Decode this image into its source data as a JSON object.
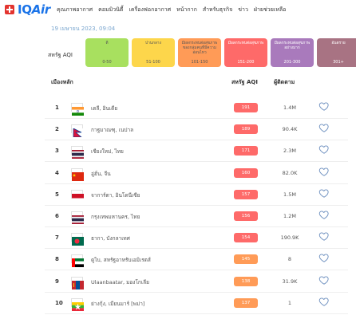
{
  "header": {
    "logo_prefix": "IQ",
    "logo_suffix": "Air",
    "nav": [
      "คุณภาพอากาศ",
      "คอมมิวนิตี้",
      "เครื่องฟอกอากาศ",
      "หน้ากาก",
      "สำหรับธุรกิจ",
      "ข่าว",
      "ฝ่ายช่วยเหลือ"
    ]
  },
  "date": "19 เมษายน 2023, 09:04",
  "scale": {
    "label": "สหรัฐ AQI",
    "levels": [
      {
        "name": "ดี",
        "range": "0-50",
        "color": "#a8e05f",
        "text_color": "#555555"
      },
      {
        "name": "ปานกลาง",
        "range": "51-100",
        "color": "#fdd64b",
        "text_color": "#555555"
      },
      {
        "name": "มีผลกระทบต่อสุขภาพของกลุ่มคนที่มีความอ่อนไหว",
        "range": "101-150",
        "color": "#ff9b57",
        "text_color": "#555555"
      },
      {
        "name": "มีผลกระทบต่อสุขภาพ",
        "range": "151-200",
        "color": "#fe6a69",
        "text_color": "#ffffff"
      },
      {
        "name": "มีผลกระทบต่อสุขภาพอย่างมาก",
        "range": "201-300",
        "color": "#a97abc",
        "text_color": "#ffffff"
      },
      {
        "name": "อันตราย",
        "range": "301+",
        "color": "#a87383",
        "text_color": "#ffffff"
      }
    ]
  },
  "table": {
    "headers": {
      "city": "เมืองหลัก",
      "aqi": "สหรัฐ AQI",
      "followers": "ผู้ติดตาม"
    },
    "rows": [
      {
        "rank": "1",
        "city": "เดลี, อินเดีย",
        "aqi": "191",
        "aqi_color": "#fe6a69",
        "followers": "1.4M",
        "flag": "india"
      },
      {
        "rank": "2",
        "city": "กาฐมาณฑุ, เนปาล",
        "aqi": "189",
        "aqi_color": "#fe6a69",
        "followers": "90.4K",
        "flag": "nepal"
      },
      {
        "rank": "3",
        "city": "เชียงใหม่, ไทย",
        "aqi": "171",
        "aqi_color": "#fe6a69",
        "followers": "2.3M",
        "flag": "thailand"
      },
      {
        "rank": "4",
        "city": "อู่ฮั่น, จีน",
        "aqi": "160",
        "aqi_color": "#fe6a69",
        "followers": "82.0K",
        "flag": "china"
      },
      {
        "rank": "5",
        "city": "จาการ์ตา, อินโดนีเซีย",
        "aqi": "157",
        "aqi_color": "#fe6a69",
        "followers": "1.5M",
        "flag": "indonesia"
      },
      {
        "rank": "6",
        "city": "กรุงเทพมหานคร, ไทย",
        "aqi": "156",
        "aqi_color": "#fe6a69",
        "followers": "1.2M",
        "flag": "thailand"
      },
      {
        "rank": "7",
        "city": "ธากา, บังกลาเทศ",
        "aqi": "154",
        "aqi_color": "#fe6a69",
        "followers": "190.9K",
        "flag": "bangladesh"
      },
      {
        "rank": "8",
        "city": "ดูไบ, สหรัฐอาหรับเอมิเรตส์",
        "aqi": "145",
        "aqi_color": "#ff9b57",
        "followers": "8",
        "flag": "uae"
      },
      {
        "rank": "9",
        "city": "Ulaanbaatar, มองโกเลีย",
        "aqi": "138",
        "aqi_color": "#ff9b57",
        "followers": "31.9K",
        "flag": "mongolia"
      },
      {
        "rank": "10",
        "city": "ย่างกุ้ง, เมียนมาร์ [พม่า]",
        "aqi": "137",
        "aqi_color": "#ff9b57",
        "followers": "1",
        "flag": "myanmar"
      }
    ]
  }
}
